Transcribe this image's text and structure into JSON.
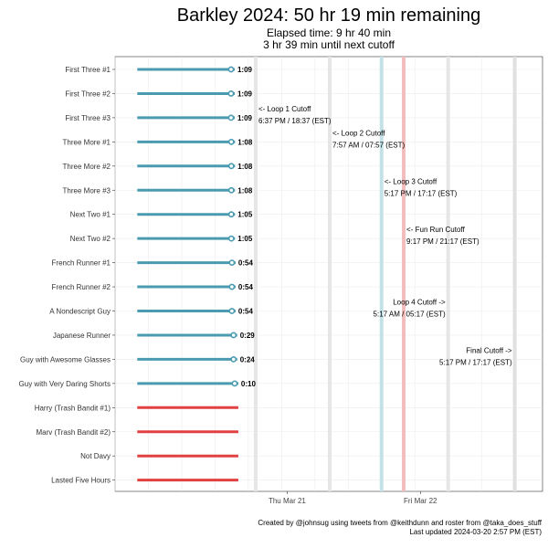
{
  "chart_data": {
    "type": "timeline",
    "title": "Barkley 2024: 50 hr 19 min remaining",
    "subtitle": [
      "Elapsed time: 9 hr 40 min",
      "3 hr 39 min until next cutoff"
    ],
    "xlabel": "",
    "ylabel": "",
    "x_range_hours": [
      -12,
      65
    ],
    "x_ticks": [
      {
        "label": "Thu Mar 21",
        "hours": 19
      },
      {
        "label": "Fri Mar 22",
        "hours": 43
      }
    ],
    "runners": [
      {
        "name": "First Three #1",
        "time_label": "1:09",
        "elapsed_hours": 9.55,
        "status": "active"
      },
      {
        "name": "First Three #2",
        "time_label": "1:09",
        "elapsed_hours": 9.55,
        "status": "active"
      },
      {
        "name": "First Three #3",
        "time_label": "1:09",
        "elapsed_hours": 9.55,
        "status": "active"
      },
      {
        "name": "Three More #1",
        "time_label": "1:08",
        "elapsed_hours": 9.6,
        "status": "active"
      },
      {
        "name": "Three More #2",
        "time_label": "1:08",
        "elapsed_hours": 9.6,
        "status": "active"
      },
      {
        "name": "Three More #3",
        "time_label": "1:08",
        "elapsed_hours": 9.6,
        "status": "active"
      },
      {
        "name": "Next Two #1",
        "time_label": "1:05",
        "elapsed_hours": 9.6,
        "status": "active"
      },
      {
        "name": "Next Two #2",
        "time_label": "1:05",
        "elapsed_hours": 9.6,
        "status": "active"
      },
      {
        "name": "French Runner #1",
        "time_label": "0:54",
        "elapsed_hours": 9.7,
        "status": "active"
      },
      {
        "name": "French Runner #2",
        "time_label": "0:54",
        "elapsed_hours": 9.7,
        "status": "active"
      },
      {
        "name": "A Nondescript Guy",
        "time_label": "0:54",
        "elapsed_hours": 9.7,
        "status": "active"
      },
      {
        "name": "Japanese Runner",
        "time_label": "0:29",
        "elapsed_hours": 10.0,
        "status": "active"
      },
      {
        "name": "Guy with Awesome Glasses",
        "time_label": "0:24",
        "elapsed_hours": 10.0,
        "status": "active"
      },
      {
        "name": "Guy with Very Daring Shorts",
        "time_label": "0:10",
        "elapsed_hours": 10.2,
        "status": "active"
      },
      {
        "name": "Harry (Trash Bandit #1)",
        "time_label": "",
        "elapsed_hours": 10.2,
        "status": "dropped"
      },
      {
        "name": "Marv (Trash Bandit #2)",
        "time_label": "",
        "elapsed_hours": 10.2,
        "status": "dropped"
      },
      {
        "name": "Not Davy",
        "time_label": "",
        "elapsed_hours": 10.2,
        "status": "dropped"
      },
      {
        "name": "Lasted Five Hours",
        "time_label": "",
        "elapsed_hours": 10.2,
        "status": "dropped"
      }
    ],
    "cutoffs": [
      {
        "name": "Loop 1 Cutoff",
        "hours": 13.33,
        "color": "#e6e6e6",
        "label": [
          "<- Loop 1 Cutoff",
          "6:37 PM / 18:37 (EST)"
        ],
        "label_side": "right",
        "label_row": 2
      },
      {
        "name": "Loop 2 Cutoff",
        "hours": 26.67,
        "color": "#e6e6e6",
        "label": [
          "<- Loop 2 Cutoff",
          "7:57 AM / 07:57 (EST)"
        ],
        "label_side": "right",
        "label_row": 3
      },
      {
        "name": "Loop 3 Cutoff",
        "hours": 36,
        "color": "#c3e1e6",
        "label": [
          "<- Loop 3 Cutoff",
          "5:17 PM / 17:17 (EST)"
        ],
        "label_side": "right",
        "label_row": 5
      },
      {
        "name": "Fun Run Cutoff",
        "hours": 40,
        "color": "#f2bdbd",
        "label": [
          "<- Fun Run Cutoff",
          "9:17 PM / 21:17 (EST)"
        ],
        "label_side": "right",
        "label_row": 7
      },
      {
        "name": "Loop 4 Cutoff",
        "hours": 48,
        "color": "#e6e6e6",
        "label": [
          "Loop 4 Cutoff ->",
          "5:17 AM / 05:17 (EST)"
        ],
        "label_side": "left",
        "label_row": 10
      },
      {
        "name": "Final Cutoff",
        "hours": 60,
        "color": "#e0e0e0",
        "label": [
          "Final Cutoff ->",
          "5:17 PM / 17:17 (EST)"
        ],
        "label_side": "left",
        "label_row": 12
      }
    ],
    "colors": {
      "active": "#4a9bb0",
      "dropped": "#e24141"
    },
    "grid": true
  },
  "caption": {
    "line1": "Created by @johnsug using tweets from @keithdunn and roster from @taka_does_stuff",
    "line2": "Last updated 2024-03-20 2:57 PM (EST)"
  }
}
